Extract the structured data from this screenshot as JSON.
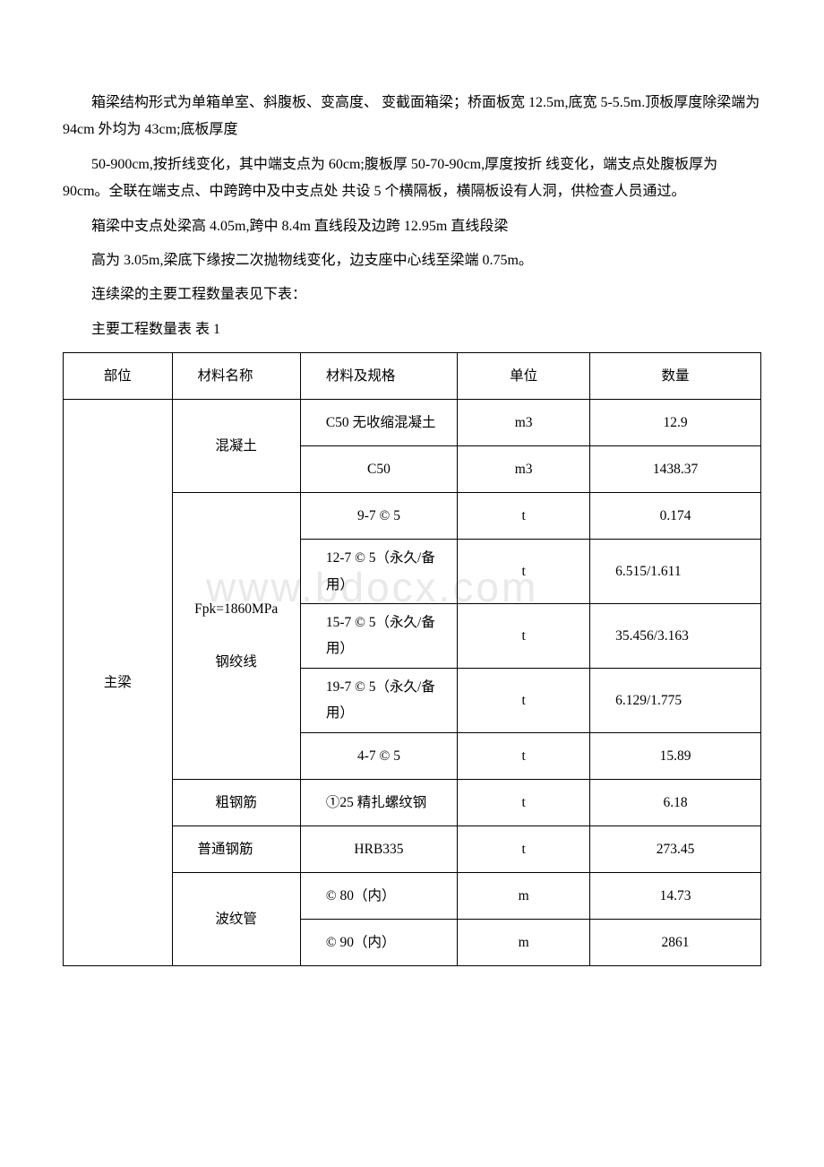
{
  "paragraphs": {
    "p1": "箱梁结构形式为单箱单室、斜腹板、变高度、 变截面箱梁；桥面板宽 12.5m,底宽 5-5.5m.顶板厚度除梁端为 94cm 外均为 43cm;底板厚度",
    "p2": "50-900cm,按折线变化，其中端支点为 60cm;腹板厚 50-70-90cm,厚度按折 线变化，端支点处腹板厚为 90cm。全联在端支点、中跨跨中及中支点处 共设 5 个横隔板，横隔板设有人洞，供检查人员通过。",
    "p3": "箱梁中支点处梁高 4.05m,跨中 8.4m 直线段及边跨 12.95m 直线段梁",
    "p4": "高为 3.05m,梁底下缘按二次抛物线变化，边支座中心线至梁端 0.75m。",
    "p5": "连续梁的主要工程数量表见下表：",
    "p6": "主要工程数量表 表 1"
  },
  "watermark": "www.bdocx.com",
  "table": {
    "header": {
      "part": "部位",
      "name": "材料名称",
      "spec": "材料及规格",
      "unit": "单位",
      "qty": "数量"
    },
    "rows": [
      {
        "part": "主梁",
        "name": "混凝土",
        "spec": "C50 无收缩混凝土",
        "unit": "m3",
        "qty": "12.9"
      },
      {
        "spec": "C50",
        "unit": "m3",
        "qty": "1438.37"
      },
      {
        "name": "Fpk=1860MPa",
        "name2": "钢绞线",
        "spec": "9-7 © 5",
        "unit": "t",
        "qty": "0.174"
      },
      {
        "spec": "12-7 © 5（永久/备用）",
        "unit": "t",
        "qty": "6.515/1.611"
      },
      {
        "spec": "15-7 © 5（永久/备用）",
        "unit": "t",
        "qty": "35.456/3.163"
      },
      {
        "spec": "19-7 © 5（永久/备用）",
        "unit": "t",
        "qty": "6.129/1.775"
      },
      {
        "spec": "4-7 © 5",
        "unit": "t",
        "qty": "15.89"
      },
      {
        "name": "粗钢筋",
        "spec": "①25 精扎螺纹钢",
        "unit": "t",
        "qty": "6.18"
      },
      {
        "name": "普通钢筋",
        "spec": "HRB335",
        "unit": "t",
        "qty": "273.45"
      },
      {
        "name": "波纹管",
        "spec": "© 80（内）",
        "unit": "m",
        "qty": "14.73"
      },
      {
        "spec": "© 90（内）",
        "unit": "m",
        "qty": "2861"
      }
    ]
  },
  "colors": {
    "text": "#000000",
    "border": "#000000",
    "background": "#ffffff",
    "watermark": "#e9e9e9"
  }
}
